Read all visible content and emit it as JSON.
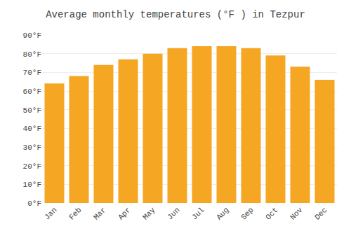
{
  "chart_data": {
    "type": "bar",
    "title": "Average monthly temperatures (°F ) in Tezpur",
    "categories": [
      "Jan",
      "Feb",
      "Mar",
      "Apr",
      "May",
      "Jun",
      "Jul",
      "Aug",
      "Sep",
      "Oct",
      "Nov",
      "Dec"
    ],
    "values": [
      64,
      68,
      74,
      77,
      80,
      83,
      84,
      84,
      83,
      79,
      73,
      66
    ],
    "color": "#F5A623",
    "ylim": [
      0,
      90
    ],
    "yticks": [
      {
        "value": 0,
        "label": "0°F"
      },
      {
        "value": 10,
        "label": "10°F"
      },
      {
        "value": 20,
        "label": "20°F"
      },
      {
        "value": 30,
        "label": "30°F"
      },
      {
        "value": 40,
        "label": "40°F"
      },
      {
        "value": 50,
        "label": "50°F"
      },
      {
        "value": 60,
        "label": "60°F"
      },
      {
        "value": 70,
        "label": "70°F"
      },
      {
        "value": 80,
        "label": "80°F"
      },
      {
        "value": 90,
        "label": "90°F"
      }
    ],
    "grid": true
  }
}
